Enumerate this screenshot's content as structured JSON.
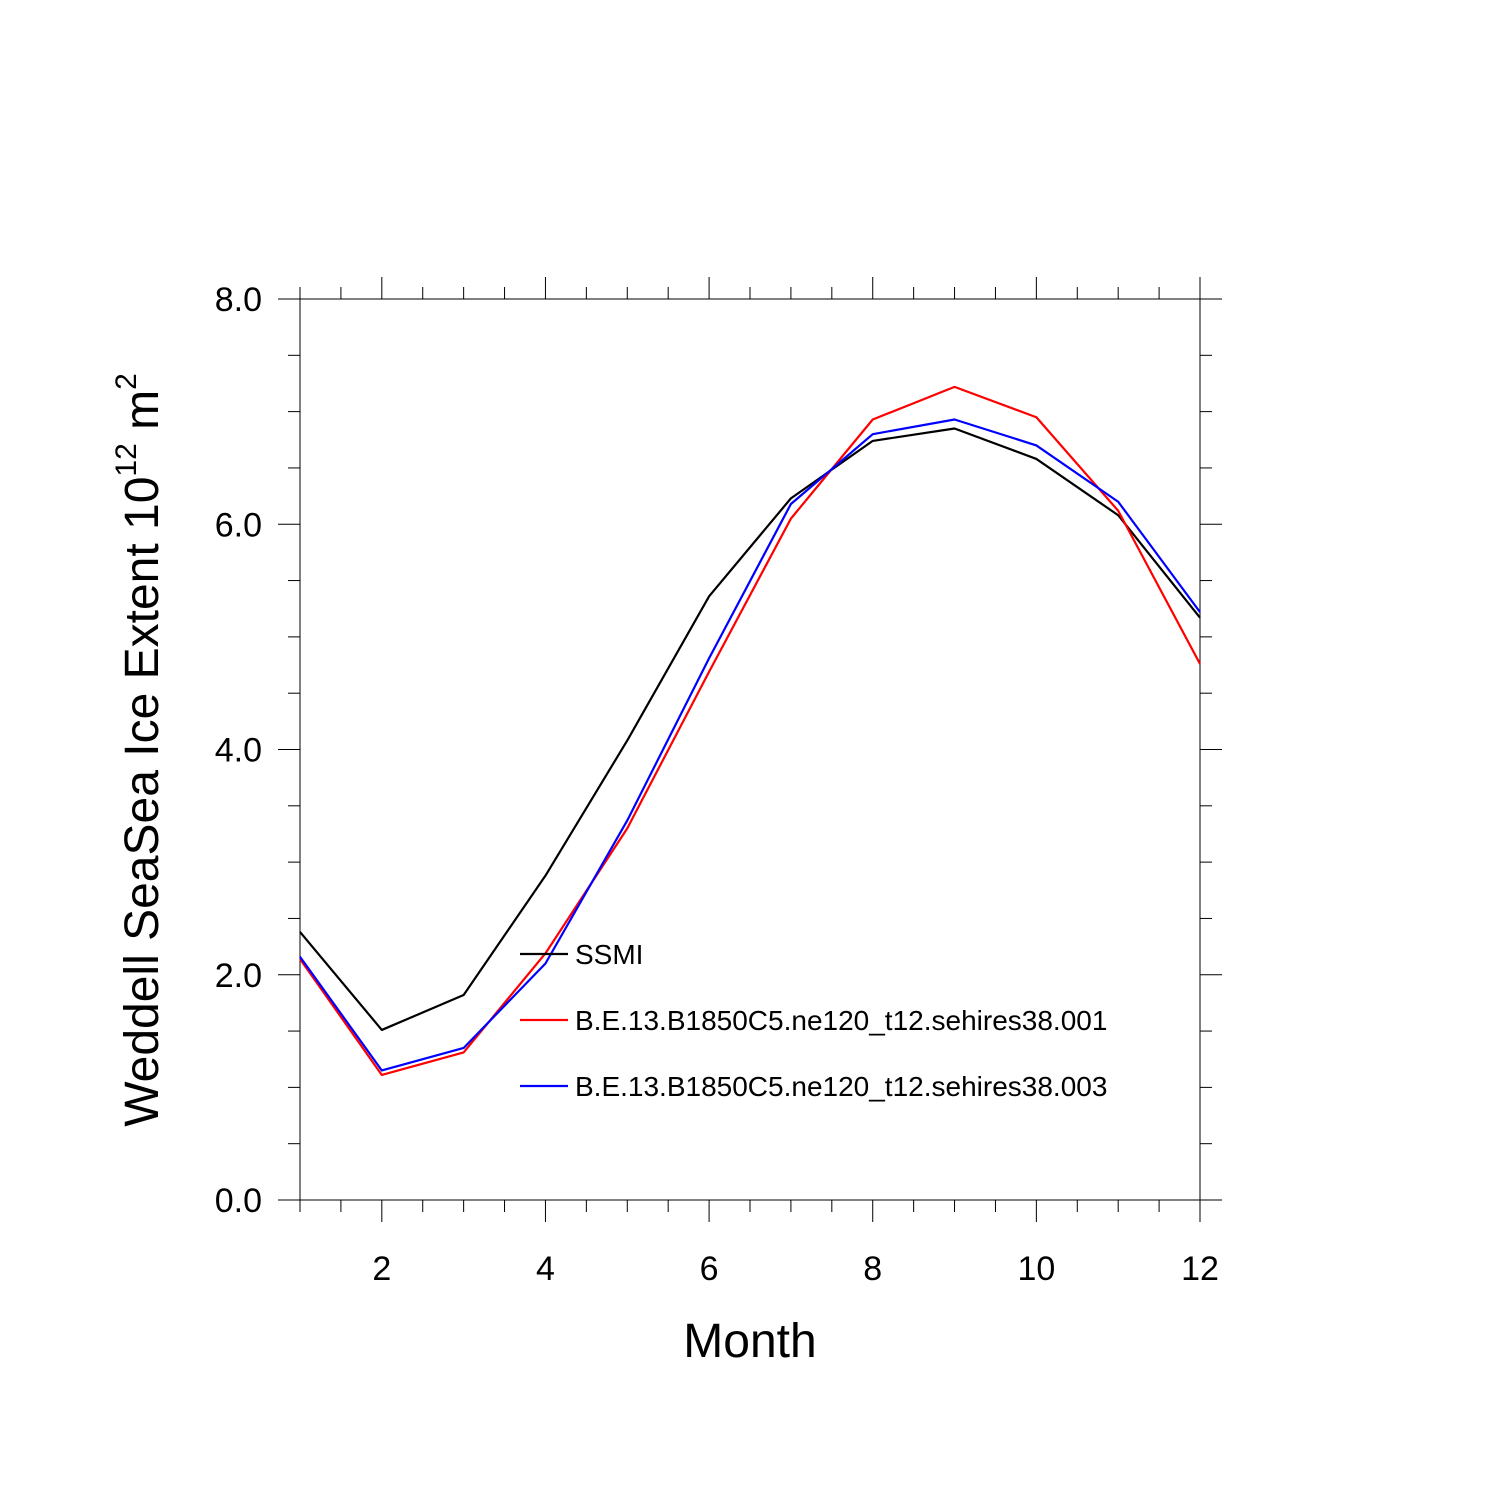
{
  "chart_data": {
    "type": "line",
    "title": "",
    "xlabel": "Month",
    "ylabel_main": "Weddell SeaSea Ice Extent 10",
    "ylabel_exponent": "12",
    "ylabel_unit": " m",
    "ylabel_unit_exponent": "2",
    "xlim": [
      1,
      12
    ],
    "ylim": [
      0,
      8
    ],
    "x_ticks": [
      2,
      4,
      6,
      8,
      10,
      12
    ],
    "x_tick_labels": [
      "2",
      "4",
      "6",
      "8",
      "10",
      "12"
    ],
    "y_ticks": [
      0,
      2,
      4,
      6,
      8
    ],
    "y_tick_labels": [
      "0.0",
      "2.0",
      "4.0",
      "6.0",
      "8.0"
    ],
    "x": [
      1,
      2,
      3,
      4,
      5,
      6,
      7,
      8,
      9,
      10,
      11,
      12
    ],
    "series": [
      {
        "name": "SSMI",
        "color": "#000000",
        "values": [
          2.38,
          1.51,
          1.82,
          2.88,
          4.08,
          5.36,
          6.23,
          6.74,
          6.85,
          6.58,
          6.08,
          5.17
        ]
      },
      {
        "name": "B.E.13.B1850C5.ne120_t12.sehires38.001",
        "color": "#ff0000",
        "values": [
          2.14,
          1.11,
          1.31,
          2.19,
          3.3,
          4.69,
          6.05,
          6.93,
          7.22,
          6.95,
          6.12,
          4.76
        ]
      },
      {
        "name": "B.E.13.B1850C5.ne120_t12.sehires38.003",
        "color": "#0000ff",
        "values": [
          2.16,
          1.15,
          1.35,
          2.1,
          3.37,
          4.81,
          6.18,
          6.8,
          6.93,
          6.7,
          6.2,
          5.22
        ]
      }
    ],
    "legend_position": "lower-center"
  }
}
